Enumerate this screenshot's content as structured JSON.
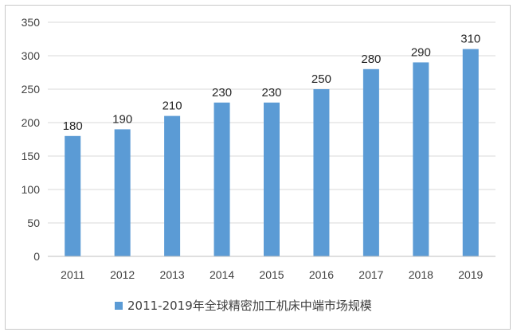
{
  "chart_data": {
    "type": "bar",
    "categories": [
      "2011",
      "2012",
      "2013",
      "2014",
      "2015",
      "2016",
      "2017",
      "2018",
      "2019"
    ],
    "series": [
      {
        "name": "2011-2019年全球精密加工机床中端市场规模",
        "values": [
          180,
          190,
          210,
          230,
          230,
          250,
          280,
          290,
          310
        ]
      }
    ],
    "ylim": [
      0,
      350
    ],
    "yticks": [
      0,
      50,
      100,
      150,
      200,
      250,
      300,
      350
    ],
    "grid": true,
    "legend": "bottom",
    "colors": {
      "bar": "#5b9bd5",
      "grid": "#d9d9d9",
      "axis": "#bfbfbf"
    }
  }
}
